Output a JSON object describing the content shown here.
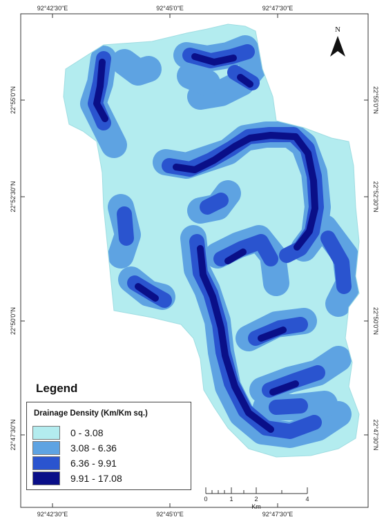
{
  "colors": {
    "class1": "#b3ecef",
    "class2": "#5ea3e2",
    "class3": "#2a54cf",
    "class4": "#0a0f88",
    "border": "#333333"
  },
  "coordinates": {
    "top": [
      "92°42'30\"E",
      "92°45'0\"E",
      "92°47'30\"E"
    ],
    "bottom": [
      "92°42'30\"E",
      "92°45'0\"E",
      "92°47'30\"E"
    ],
    "left": [
      "22°55'0\"N",
      "22°52'30\"N",
      "22°50'0\"N",
      "22°47'30\"N"
    ],
    "right": [
      "22°55'0\"N",
      "22°52'30\"N",
      "22°50'0\"N",
      "22°47'30\"N"
    ]
  },
  "north_arrow": {
    "label": "N"
  },
  "scale_bar": {
    "ticks": [
      "0",
      "1",
      "2",
      "4"
    ],
    "unit": "Km"
  },
  "legend": {
    "title": "Legend",
    "heading": "Drainage Density (Km/Km sq.)",
    "items": [
      {
        "label": "0 - 3.08",
        "color": "#b3ecef"
      },
      {
        "label": "3.08 - 6.36",
        "color": "#5ea3e2"
      },
      {
        "label": "6.36 - 9.91",
        "color": "#2a54cf"
      },
      {
        "label": "9.91 - 17.08",
        "color": "#0a0f88"
      }
    ]
  }
}
